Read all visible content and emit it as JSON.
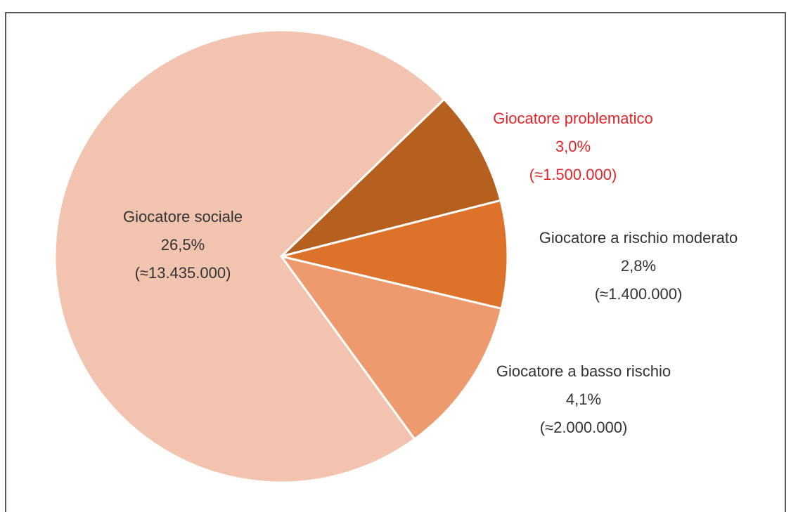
{
  "chart_data": {
    "type": "pie",
    "categories": [
      "Giocatore problematico",
      "Giocatore a rischio moderato",
      "Giocatore a basso rischio",
      "Giocatore sociale"
    ],
    "values": [
      3.0,
      2.8,
      4.1,
      26.5
    ],
    "value_labels": [
      "3,0%",
      "2,8%",
      "4,1%",
      "26,5%"
    ],
    "count_labels": [
      "(≈1.500.000)",
      "(≈1.400.000)",
      "(≈2.000.000)",
      "(≈13.435.000)"
    ],
    "colors": [
      "#b5601f",
      "#dd722a",
      "#ec9a6e",
      "#f2c3ae"
    ],
    "label_colors": [
      "#e0252a",
      "#333333",
      "#333333",
      "#333333"
    ]
  }
}
